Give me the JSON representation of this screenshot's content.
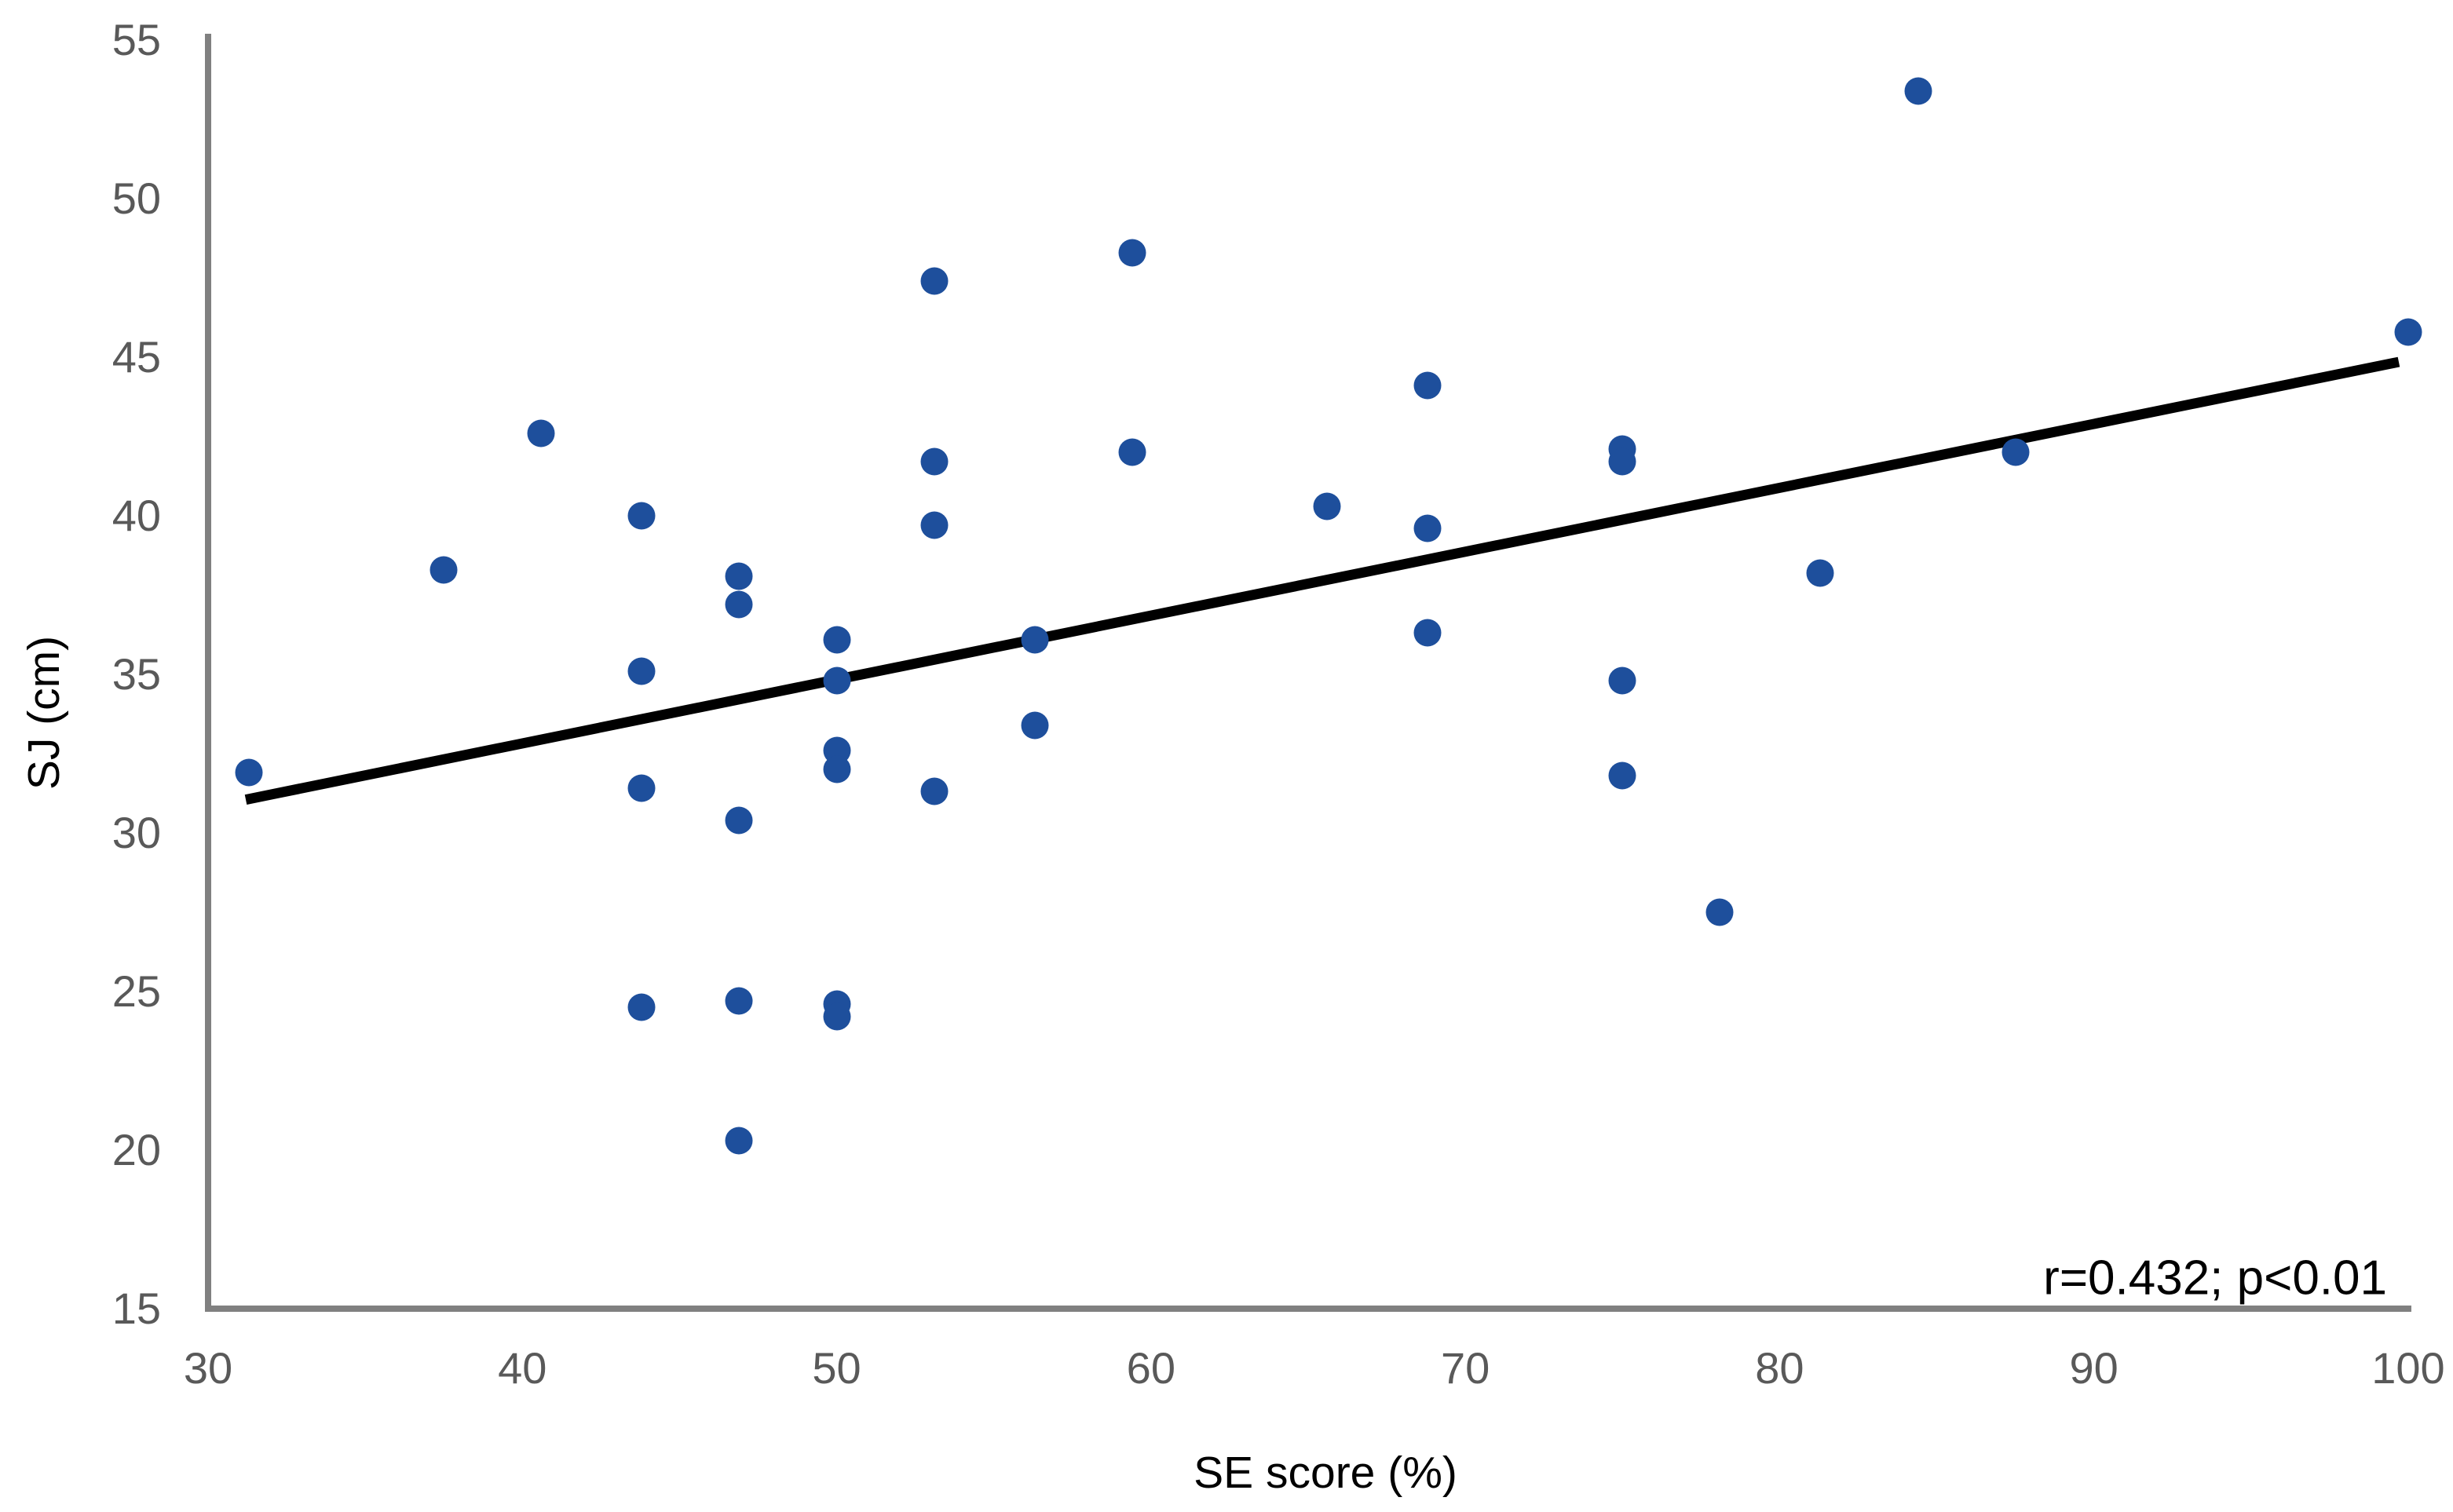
{
  "figure": {
    "y_axis_title": "SJ (cm)",
    "x_axis_title": "SE score (%)",
    "annotation": "r=0.432; p<0.01"
  },
  "colors": {
    "dot": "#1e4f9c",
    "trend_line": "#000000",
    "axis_line": "#808080",
    "tick_label": "#595959",
    "text": "#000000"
  },
  "chart_data": {
    "type": "scatter",
    "title": "",
    "xlabel": "SE score (%)",
    "ylabel": "SJ (cm)",
    "xlim": [
      30,
      100
    ],
    "ylim": [
      15,
      55
    ],
    "x_ticks": [
      30,
      40,
      50,
      60,
      70,
      80,
      90,
      100
    ],
    "y_ticks": [
      15,
      20,
      25,
      30,
      35,
      40,
      45,
      50,
      55
    ],
    "grid": false,
    "legend": "none",
    "annotation": "r=0.432; p<0.01",
    "correlation": {
      "r": 0.432,
      "p": "<0.01"
    },
    "series": [
      {
        "name": "participants",
        "points": [
          [
            31.3,
            31.9
          ],
          [
            37.5,
            38.3
          ],
          [
            40.6,
            42.6
          ],
          [
            43.8,
            40.0
          ],
          [
            43.8,
            35.1
          ],
          [
            43.8,
            31.4
          ],
          [
            43.8,
            24.5
          ],
          [
            46.9,
            38.1
          ],
          [
            46.9,
            37.2
          ],
          [
            46.9,
            30.4
          ],
          [
            46.9,
            24.7
          ],
          [
            46.9,
            20.3
          ],
          [
            50.0,
            36.1
          ],
          [
            50.0,
            34.8
          ],
          [
            50.0,
            32.6
          ],
          [
            50.0,
            32.0
          ],
          [
            50.0,
            24.6
          ],
          [
            50.0,
            24.2
          ],
          [
            53.1,
            47.4
          ],
          [
            53.1,
            41.7
          ],
          [
            53.1,
            39.7
          ],
          [
            53.1,
            31.3
          ],
          [
            56.3,
            36.1
          ],
          [
            56.3,
            33.4
          ],
          [
            59.4,
            48.3
          ],
          [
            59.4,
            42.0
          ],
          [
            65.6,
            40.3
          ],
          [
            68.8,
            44.1
          ],
          [
            68.8,
            39.6
          ],
          [
            68.8,
            36.3
          ],
          [
            75.0,
            42.1
          ],
          [
            75.0,
            41.7
          ],
          [
            75.0,
            34.8
          ],
          [
            75.0,
            31.8
          ],
          [
            78.1,
            27.5
          ],
          [
            81.3,
            38.2
          ],
          [
            84.4,
            53.4
          ],
          [
            87.5,
            42.0
          ],
          [
            100.0,
            45.8
          ]
        ]
      }
    ],
    "trend_line": {
      "x1": 31.2,
      "y1": 31.05,
      "x2": 99.7,
      "y2": 44.85
    }
  }
}
